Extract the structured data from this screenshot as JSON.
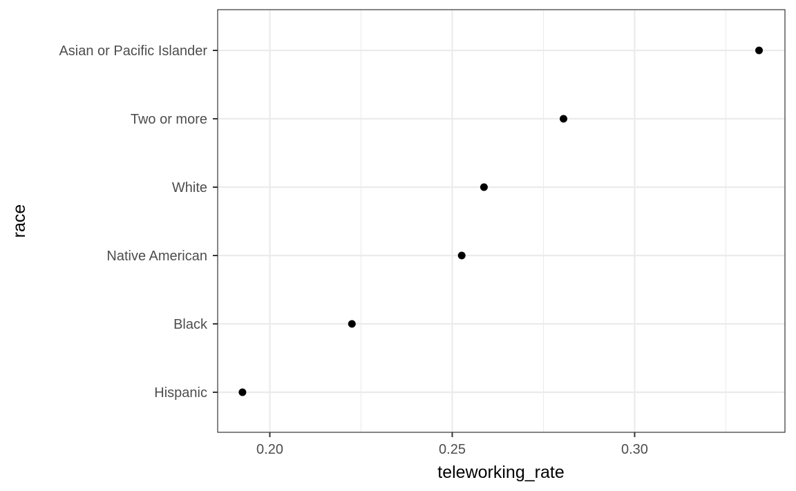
{
  "chart_data": {
    "type": "scatter",
    "orientation": "horizontal",
    "xlabel": "teleworking_rate",
    "ylabel": "race",
    "xlim": [
      0.1857,
      0.3412
    ],
    "x_ticks": [
      0.2,
      0.25,
      0.3
    ],
    "x_tick_labels": [
      "0.20",
      "0.25",
      "0.30"
    ],
    "categories": [
      "Hispanic",
      "Black",
      "Native American",
      "White",
      "Two or more",
      "Asian or Pacific Islander"
    ],
    "values": [
      0.1925,
      0.2225,
      0.2526,
      0.2587,
      0.2805,
      0.3341
    ],
    "grid": true,
    "theme": "bw",
    "point_color": "#000000",
    "grid_color": "#ebebeb",
    "panel_border_color": "#333333"
  }
}
